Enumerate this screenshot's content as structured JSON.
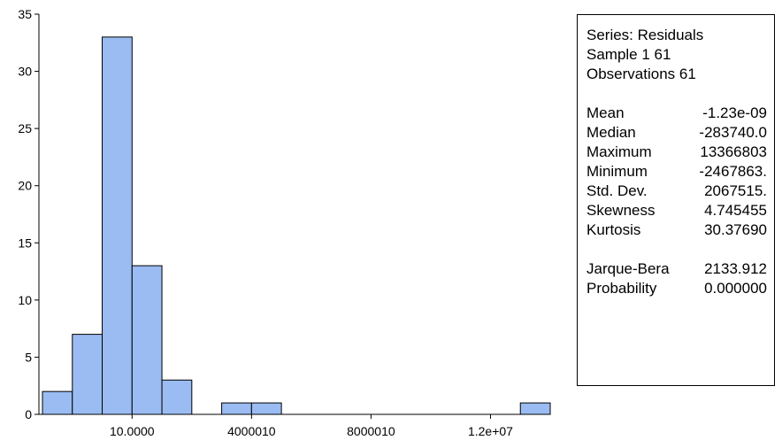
{
  "chart_data": {
    "type": "histogram",
    "title": "",
    "xlabel": "",
    "ylabel": "",
    "ylim": [
      0,
      35
    ],
    "yticks": [
      0,
      5,
      10,
      15,
      20,
      25,
      30,
      35
    ],
    "xticks": [
      {
        "value": 10,
        "label": "10.0000"
      },
      {
        "value": 4000010,
        "label": "4000010"
      },
      {
        "value": 8000010,
        "label": "8000010"
      },
      {
        "value": 12000010,
        "label": "1.2e+07"
      }
    ],
    "xlim": [
      -2999990,
      14000010
    ],
    "bin_width": 1000000,
    "bins": [
      {
        "start": -2999990,
        "end": -1999990,
        "count": 2
      },
      {
        "start": -1999990,
        "end": -999990,
        "count": 7
      },
      {
        "start": -999990,
        "end": 10,
        "count": 33
      },
      {
        "start": 10,
        "end": 1000010,
        "count": 13
      },
      {
        "start": 1000010,
        "end": 2000010,
        "count": 3
      },
      {
        "start": 2000010,
        "end": 3000010,
        "count": 0
      },
      {
        "start": 3000010,
        "end": 4000010,
        "count": 1
      },
      {
        "start": 4000010,
        "end": 5000010,
        "count": 1
      },
      {
        "start": 5000010,
        "end": 6000010,
        "count": 0
      },
      {
        "start": 6000010,
        "end": 7000010,
        "count": 0
      },
      {
        "start": 7000010,
        "end": 8000010,
        "count": 0
      },
      {
        "start": 8000010,
        "end": 9000010,
        "count": 0
      },
      {
        "start": 9000010,
        "end": 10000010,
        "count": 0
      },
      {
        "start": 10000010,
        "end": 11000010,
        "count": 0
      },
      {
        "start": 11000010,
        "end": 12000010,
        "count": 0
      },
      {
        "start": 12000010,
        "end": 13000010,
        "count": 0
      },
      {
        "start": 13000010,
        "end": 14000010,
        "count": 1
      }
    ],
    "bar_color": "#9bbcf2",
    "grid": false
  },
  "stats": {
    "series": "Series: Residuals",
    "sample": "Sample 1 61",
    "observations": "Observations 61",
    "rows": [
      {
        "label": "Mean",
        "value": "-1.23e-09"
      },
      {
        "label": "Median",
        "value": "-283740.0"
      },
      {
        "label": "Maximum",
        "value": "13366803"
      },
      {
        "label": "Minimum",
        "value": "-2467863."
      },
      {
        "label": "Std. Dev.",
        "value": "2067515."
      },
      {
        "label": "Skewness",
        "value": "4.745455"
      },
      {
        "label": "Kurtosis",
        "value": "30.37690"
      }
    ],
    "tests": [
      {
        "label": "Jarque-Bera",
        "value": "2133.912"
      },
      {
        "label": "Probability",
        "value": "0.000000"
      }
    ]
  }
}
